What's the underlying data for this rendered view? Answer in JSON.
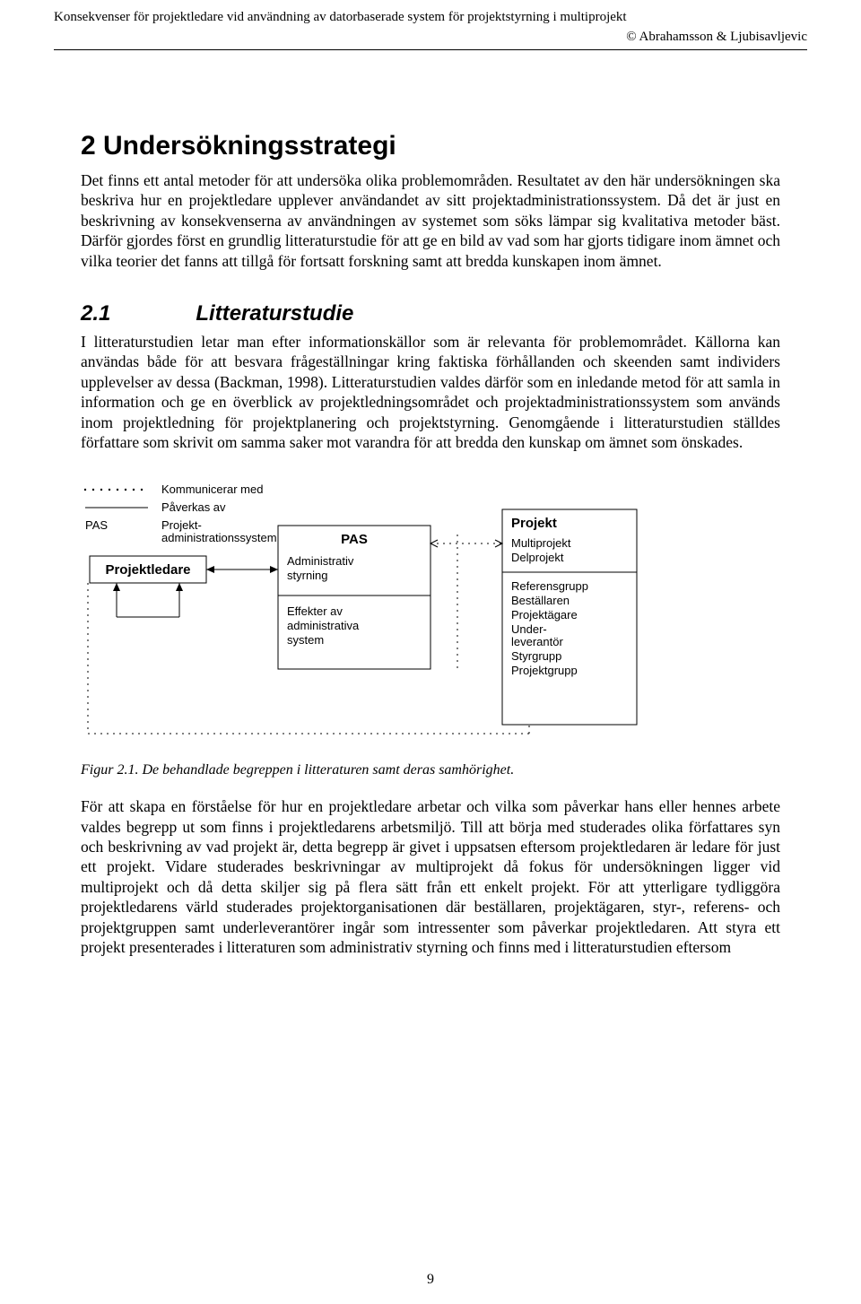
{
  "header": {
    "title_left": "Konsekvenser för projektledare vid användning av  datorbaserade system för projektstyrning i multiprojekt",
    "authors": "© Abrahamsson & Ljubisavljevic"
  },
  "section": {
    "heading": "2 Undersökningsstrategi",
    "para1": "Det finns ett antal metoder för att undersöka olika problemområden. Resultatet av den här undersökningen ska beskriva hur en projektledare upplever användandet av sitt projektadministrationssystem. Då det är just en beskrivning av konsekvenserna av användningen av systemet som söks lämpar sig kvalitativa metoder bäst. Därför gjordes först en grundlig litteraturstudie för att ge en bild av vad som har gjorts tidigare inom ämnet och vilka teorier det fanns att tillgå för fortsatt forskning samt att bredda kunskapen inom ämnet.",
    "sub_num": "2.1",
    "sub_title": "Litteraturstudie",
    "para2": "I litteraturstudien letar man efter informationskällor som är relevanta för problemområdet. Källorna kan användas både för att besvara frågeställningar kring faktiska förhållanden och skeenden samt individers upplevelser av dessa (Backman, 1998). Litteraturstudien valdes därför som en inledande metod för att samla in information och ge en överblick av projektledningsområdet och projektadministrationssystem som används inom projektledning för projektplanering och projektstyrning. Genomgående i litteraturstudien ställdes författare som skrivit om samma saker mot varandra för att bredda den kunskap om ämnet som önskades."
  },
  "diagram": {
    "legend": {
      "dotted": "Kommunicerar med",
      "solid": "Påverkas av",
      "pas_abbr": "PAS",
      "pas_full": "Projekt-\nadministrationssystem"
    },
    "box_projektledare": "Projektledare",
    "box_pas_title": "PAS",
    "box_pas_line1": "Administrativ styrning",
    "box_pas_line2": "Effekter av administrativa system",
    "box_projekt_title": "Projekt",
    "box_projekt_items": [
      "Multiprojekt",
      "Delprojekt",
      "Referensgrupp",
      "Beställaren",
      "Projektägare",
      "Under-\nleverantör",
      "Styrgrupp",
      "Projektgrupp"
    ],
    "font_family": "Arial, Helvetica, sans-serif",
    "font_size_label": 13,
    "font_size_box_title": 15,
    "stroke": "#000000",
    "bg": "#ffffff"
  },
  "caption": "Figur 2.1. De behandlade begreppen i litteraturen samt deras samhörighet.",
  "para3": "För att skapa en förståelse för hur en projektledare arbetar och vilka som påverkar hans eller hennes arbete valdes begrepp ut som finns i projektledarens arbetsmiljö. Till att börja med studerades olika författares syn och beskrivning av vad projekt är, detta begrepp är givet i uppsatsen eftersom projektledaren är ledare för just ett projekt. Vidare studerades beskrivningar av multiprojekt då fokus för undersökningen ligger vid multiprojekt och då detta skiljer sig på flera sätt från ett enkelt projekt. För att ytterligare tydliggöra projektledarens värld studerades projektorganisationen där beställaren, projektägaren, styr-, referens- och projektgruppen samt underleverantörer ingår som intressenter som påverkar projektledaren. Att styra ett projekt presenterades i litteraturen som administrativ styrning och finns med i litteraturstudien eftersom",
  "page_number": "9"
}
